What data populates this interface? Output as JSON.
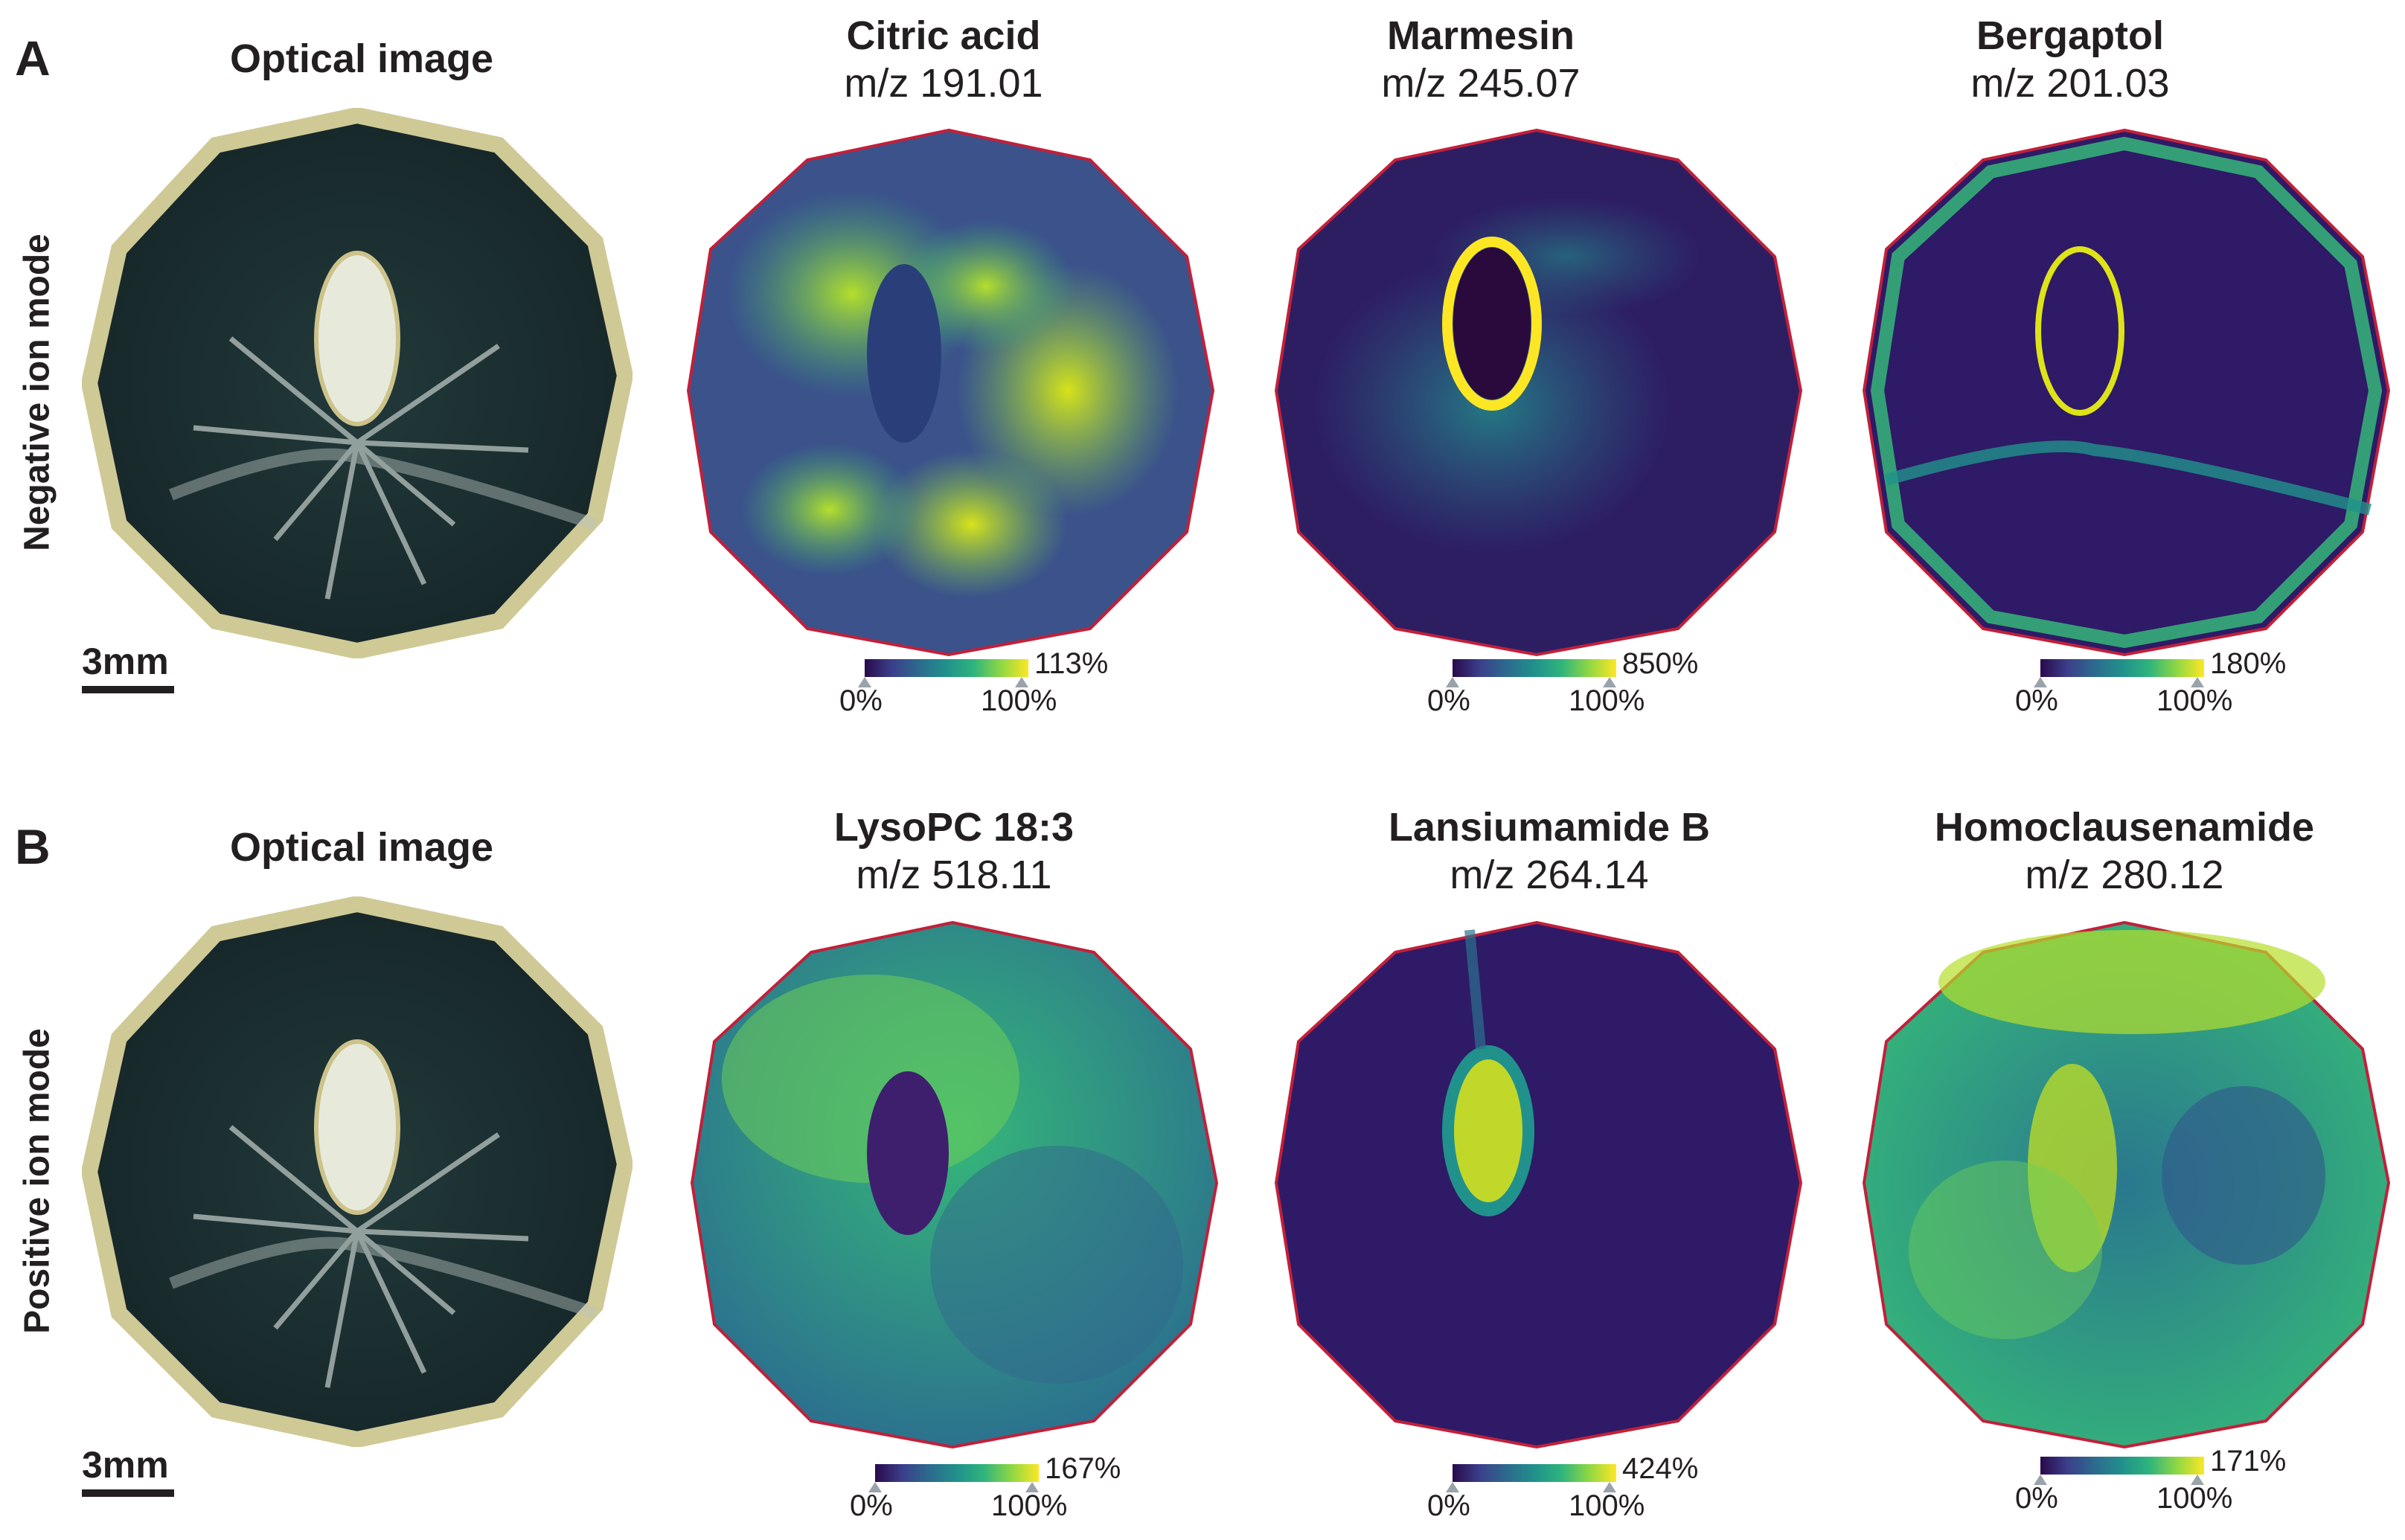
{
  "panels": [
    {
      "letter": "A",
      "mode": "Negative ion mode",
      "optical_title": "Optical image",
      "scale_label": "3mm",
      "images": [
        {
          "name": "Citric acid",
          "mz": "m/z 191.01",
          "max": "113%",
          "min_label": "0%",
          "ref_label": "100%"
        },
        {
          "name": "Marmesin",
          "mz": "m/z 245.07",
          "max": "850%",
          "min_label": "0%",
          "ref_label": "100%"
        },
        {
          "name": "Bergaptol",
          "mz": "m/z 201.03",
          "max": "180%",
          "min_label": "0%",
          "ref_label": "100%"
        }
      ]
    },
    {
      "letter": "B",
      "mode": "Positive ion mode",
      "optical_title": "Optical image",
      "scale_label": "3mm",
      "images": [
        {
          "name": "LysoPC 18:3",
          "mz": "m/z 518.11",
          "max": "167%",
          "min_label": "0%",
          "ref_label": "100%"
        },
        {
          "name": "Lansiumamide B",
          "mz": "m/z 264.14",
          "max": "424%",
          "min_label": "0%",
          "ref_label": "100%"
        },
        {
          "name": "Homoclausenamide",
          "mz": "m/z 280.12",
          "max": "171%",
          "min_label": "0%",
          "ref_label": "100%"
        }
      ]
    }
  ],
  "colors": {
    "viridis_dark": "#2a0a4c",
    "viridis_mid": "#21918c",
    "viridis_bright": "#fde725",
    "outline": "#c2203a",
    "optical_bg": "#1c2f2e"
  }
}
